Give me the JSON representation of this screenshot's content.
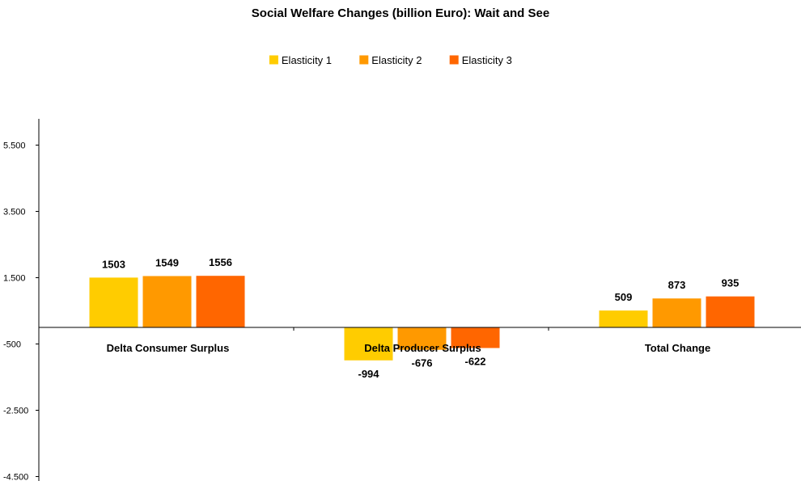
{
  "chart_data": {
    "type": "bar",
    "title": "Social Welfare Changes (billion Euro): Wait and See",
    "xlabel": "",
    "ylabel": "",
    "categories": [
      "Delta Consumer Surplus",
      "Delta Producer Surplus",
      "Total Change"
    ],
    "series": [
      {
        "name": "Elasticity 1",
        "color": "#FFCC00",
        "values": [
          1503,
          -994,
          509
        ]
      },
      {
        "name": "Elasticity 2",
        "color": "#FF9900",
        "values": [
          1549,
          -676,
          873
        ]
      },
      {
        "name": "Elasticity 3",
        "color": "#FF6600",
        "values": [
          1556,
          -622,
          935
        ]
      }
    ],
    "ylim": [
      -4500,
      6000
    ],
    "yticks": [
      5500,
      3500,
      1500,
      -500,
      -2500,
      -4500
    ],
    "ytick_labels": [
      "5.500",
      "3.500",
      "1.500",
      "-500",
      "-2.500",
      "-4.500"
    ],
    "legend_position": "top",
    "grid": false
  }
}
